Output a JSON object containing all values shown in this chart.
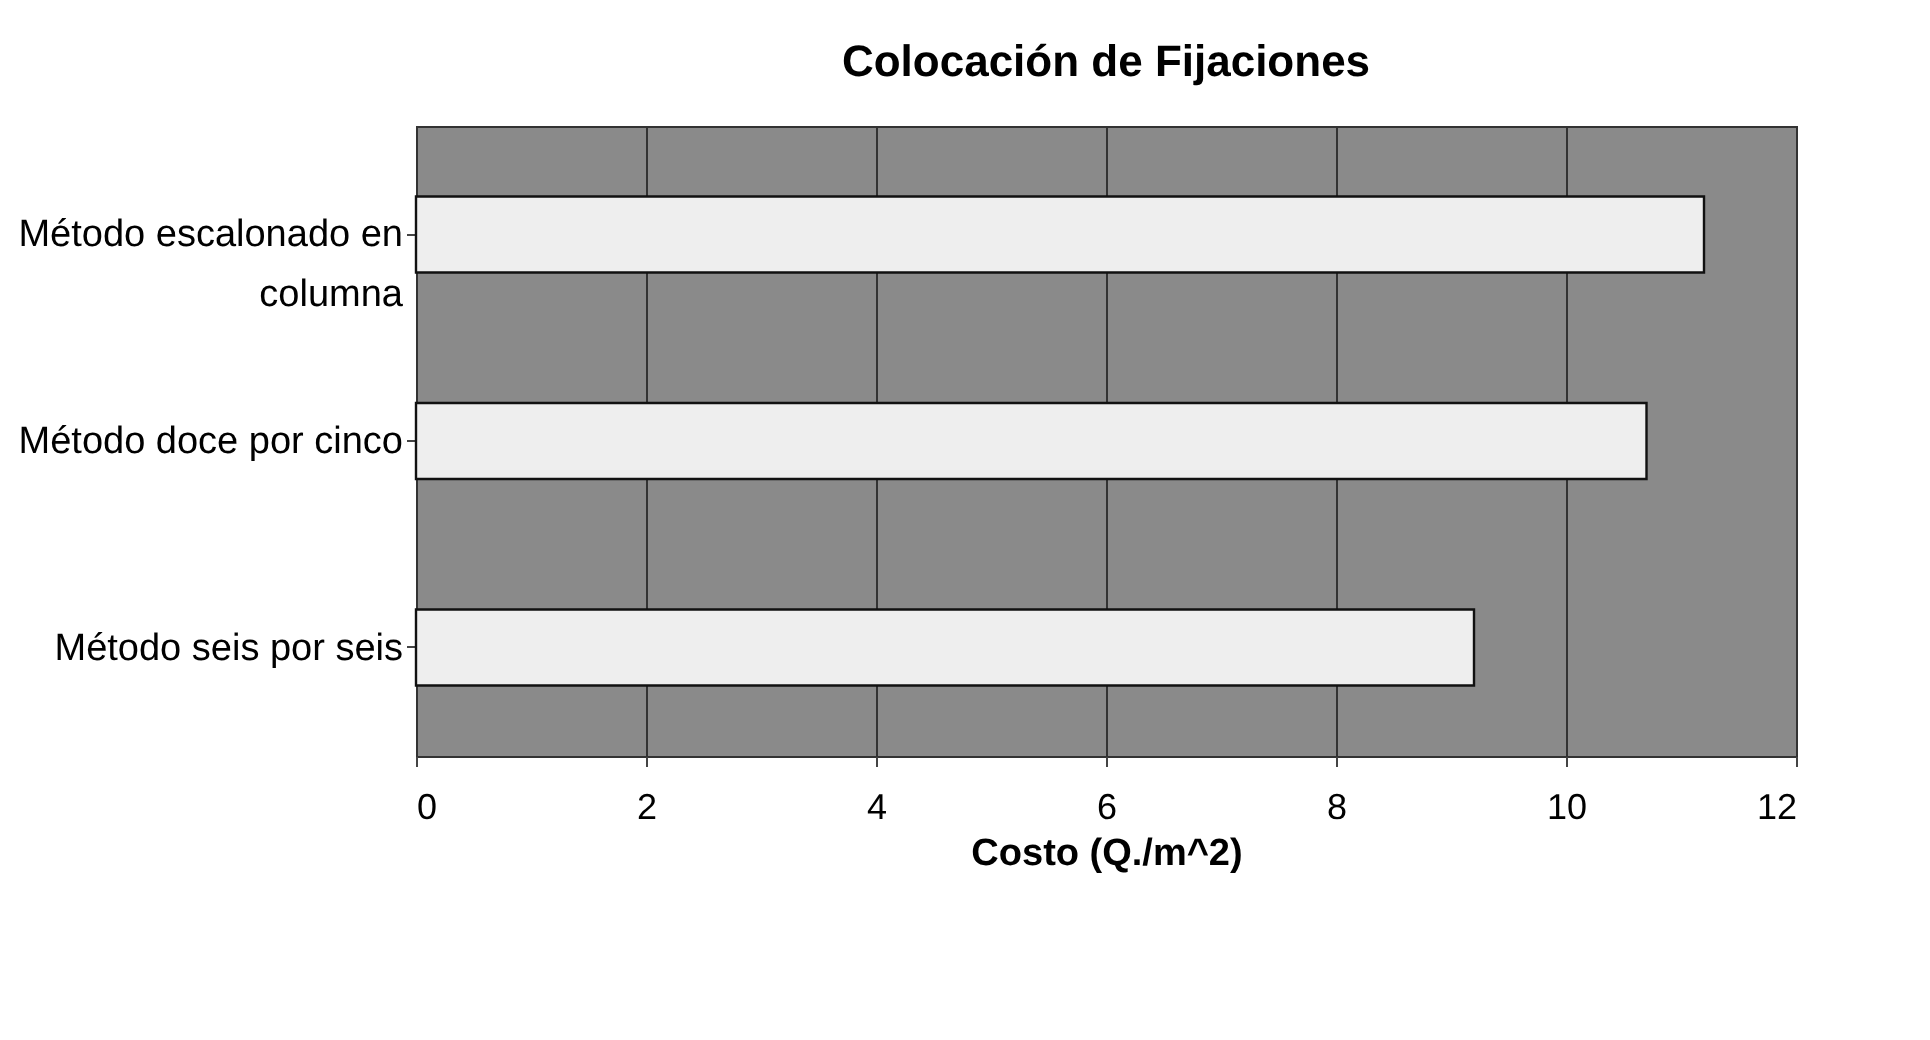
{
  "chart_data": {
    "type": "bar",
    "orientation": "horizontal",
    "title": "Colocación de Fijaciones",
    "xlabel": "Costo (Q./m^2)",
    "categories": [
      [
        "Método escalonado en",
        "columna"
      ],
      "Método doce por cinco",
      "Método seis por seis"
    ],
    "values": [
      11.2,
      10.7,
      9.2
    ],
    "color": "#eeeeee",
    "xlim": [
      0,
      12
    ],
    "xticks": [
      0,
      2,
      4,
      6,
      8,
      10,
      12
    ],
    "grid": "x"
  }
}
